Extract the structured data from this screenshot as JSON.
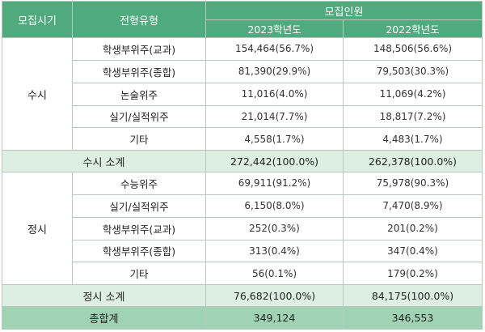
{
  "header": {
    "period_label": "모집시기",
    "type_label": "전형유형",
    "recruit_label": "모집인원",
    "year_2023": "2023학년도",
    "year_2022": "2022학년도"
  },
  "susi": {
    "label": "수시",
    "rows": [
      {
        "type": "학생부위주(교과)",
        "y2023": "154,464(56.7%)",
        "y2022": "148,506(56.6%)"
      },
      {
        "type": "학생부위주(종합)",
        "y2023": "81,390(29.9%)",
        "y2022": "79,503(30.3%)"
      },
      {
        "type": "논술위주",
        "y2023": "11,016(4.0%)",
        "y2022": "11,069(4.2%)"
      },
      {
        "type": "실기/실적위주",
        "y2023": "21,014(7.7%)",
        "y2022": "18,817(7.2%)"
      },
      {
        "type": "기타",
        "y2023": "4,558(1.7%)",
        "y2022": "4,483(1.7%)"
      }
    ],
    "subtotal": {
      "label": "수시 소계",
      "y2023": "272,442(100.0%)",
      "y2022": "262,378(100.0%)"
    }
  },
  "jeongsi": {
    "label": "정시",
    "rows": [
      {
        "type": "수능위주",
        "y2023": "69,911(91.2%)",
        "y2022": "75,978(90.3%)"
      },
      {
        "type": "실기/실적위주",
        "y2023": "6,150(8.0%)",
        "y2022": "7,470(8.9%)"
      },
      {
        "type": "학생부위주(교과)",
        "y2023": "252(0.3%)",
        "y2022": "201(0.2%)"
      },
      {
        "type": "학생부위주(종합)",
        "y2023": "313(0.4%)",
        "y2022": "347(0.4%)"
      },
      {
        "type": "기타",
        "y2023": "56(0.1%)",
        "y2022": "179(0.2%)"
      }
    ],
    "subtotal": {
      "label": "정시 소계",
      "y2023": "76,682(100.0%)",
      "y2022": "84,175(100.0%)"
    }
  },
  "total": {
    "label": "총합계",
    "y2023": "349,124",
    "y2022": "346,553"
  },
  "colors": {
    "header": "#4faa7e",
    "subtotal": "#dcefe2",
    "total": "#9fd3b4",
    "border": "#b9c9bd"
  }
}
